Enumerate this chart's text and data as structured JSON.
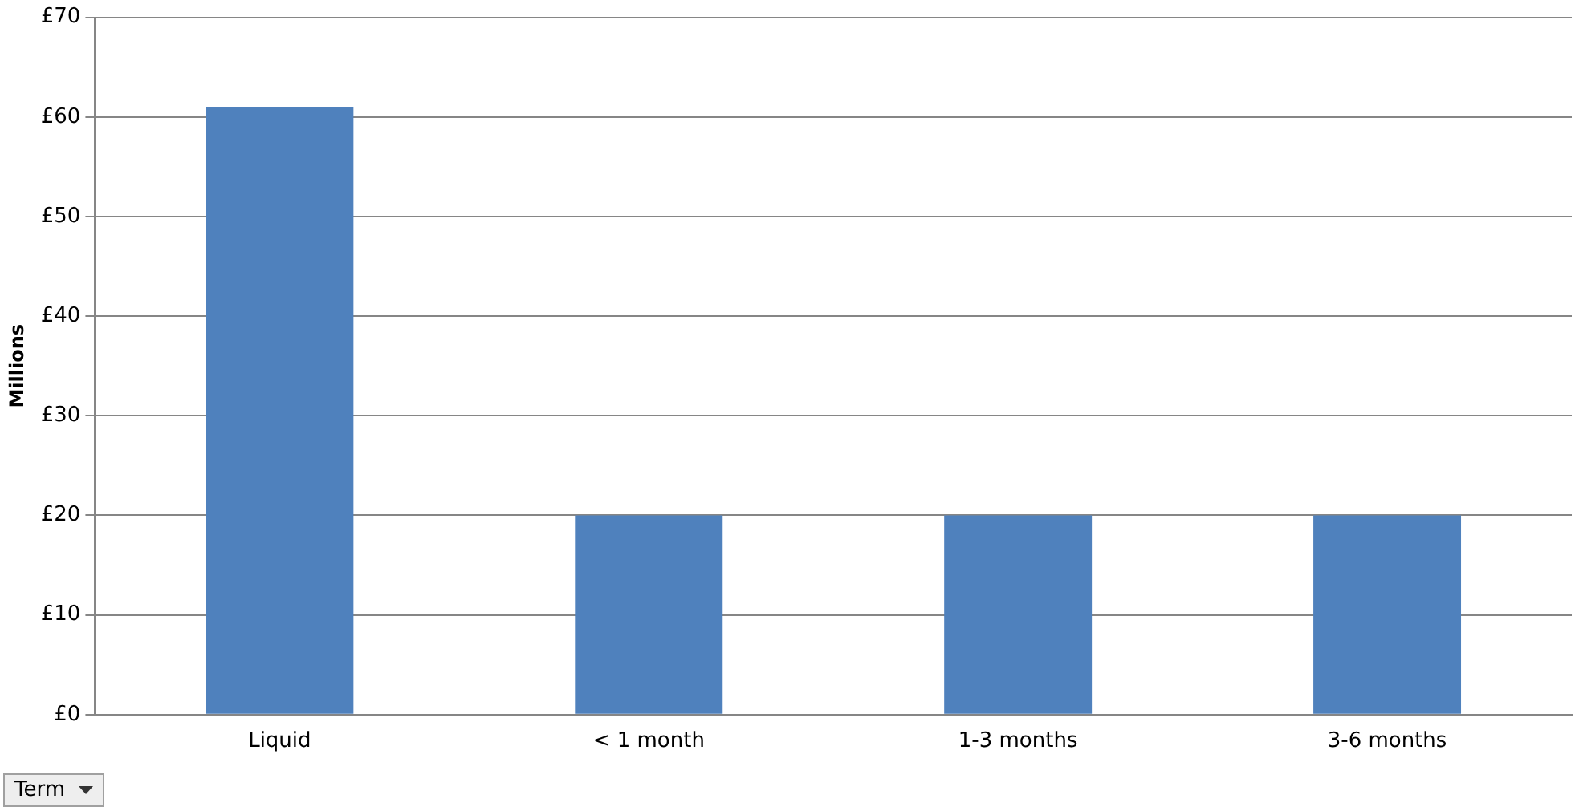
{
  "chart_data": {
    "type": "bar",
    "ylabel": "Millions",
    "categories": [
      "Liquid",
      "< 1 month",
      "1-3 months",
      "3-6 months"
    ],
    "values": [
      61,
      20,
      20,
      20
    ],
    "color": "#4f81bd",
    "ylim": [
      0,
      70
    ],
    "yticks": [
      {
        "value": 0,
        "label": "£0"
      },
      {
        "value": 10,
        "label": "£10"
      },
      {
        "value": 20,
        "label": "£20"
      },
      {
        "value": 30,
        "label": "£30"
      },
      {
        "value": 40,
        "label": "£40"
      },
      {
        "value": 50,
        "label": "£50"
      },
      {
        "value": 60,
        "label": "£60"
      },
      {
        "value": 70,
        "label": "£70"
      }
    ],
    "grid": "y",
    "annotations": [
      "Term"
    ]
  }
}
